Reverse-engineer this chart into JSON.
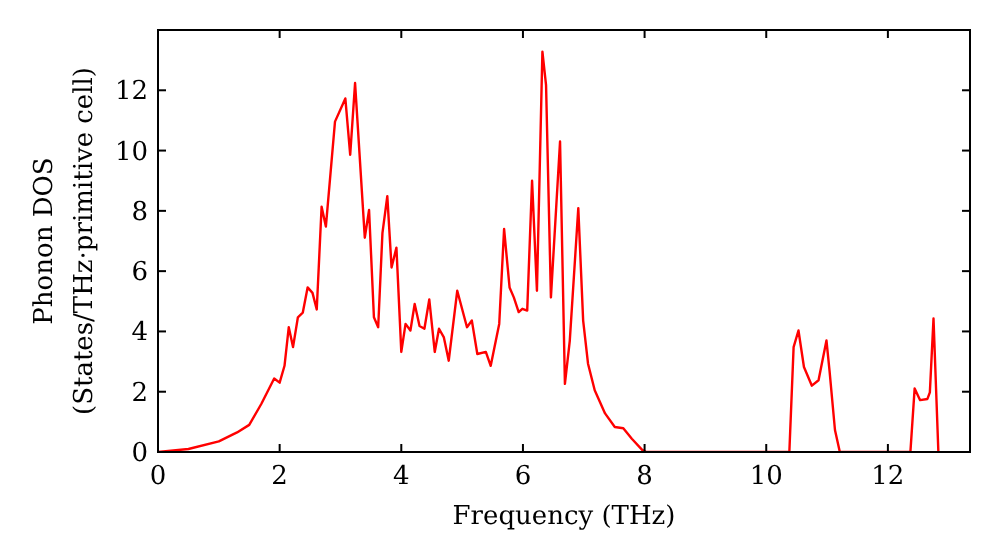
{
  "chart_data": {
    "type": "line",
    "xlabel": "Frequency (THz)",
    "ylabel": "Phonon DOS\n(States/THz·primitive cell)",
    "xlim": [
      0,
      13.35
    ],
    "ylim": [
      0,
      14
    ],
    "xticks": [
      0,
      2,
      4,
      6,
      8,
      10,
      12
    ],
    "yticks": [
      0,
      2,
      4,
      6,
      8,
      10,
      12
    ],
    "grid": false,
    "marker": "none",
    "line_style": "solid",
    "series": [
      {
        "color": "#ff0000",
        "x": [
          0,
          0.5,
          1.0,
          1.3,
          1.5,
          1.7,
          1.91,
          2.0,
          2.08,
          2.15,
          2.22,
          2.3,
          2.38,
          2.46,
          2.54,
          2.61,
          2.69,
          2.76,
          2.91,
          3.08,
          3.16,
          3.24,
          3.4,
          3.47,
          3.55,
          3.62,
          3.69,
          3.77,
          3.84,
          3.92,
          4.0,
          4.07,
          4.15,
          4.22,
          4.3,
          4.38,
          4.46,
          4.55,
          4.62,
          4.7,
          4.78,
          4.92,
          5.08,
          5.16,
          5.25,
          5.39,
          5.47,
          5.61,
          5.69,
          5.78,
          5.85,
          5.93,
          5.99,
          6.07,
          6.15,
          6.23,
          6.32,
          6.38,
          6.46,
          6.61,
          6.69,
          6.77,
          6.91,
          6.99,
          7.07,
          7.18,
          7.35,
          7.51,
          7.65,
          7.79,
          7.96,
          8.03,
          10.38,
          10.45,
          10.53,
          10.62,
          10.75,
          10.86,
          10.99,
          11.04,
          11.13,
          11.21,
          12.37,
          12.44,
          12.53,
          12.65,
          12.69,
          12.75,
          12.83
        ],
        "values": [
          0,
          0.1,
          0.35,
          0.65,
          0.9,
          1.6,
          2.44,
          2.3,
          2.86,
          4.14,
          3.48,
          4.47,
          4.62,
          5.46,
          5.28,
          4.73,
          8.14,
          7.48,
          10.96,
          11.73,
          9.86,
          12.24,
          7.11,
          8.03,
          4.47,
          4.14,
          7.26,
          8.49,
          6.12,
          6.78,
          3.32,
          4.25,
          4.03,
          4.91,
          4.18,
          4.09,
          5.06,
          3.32,
          4.09,
          3.8,
          3.03,
          5.35,
          4.14,
          4.36,
          3.25,
          3.32,
          2.86,
          4.25,
          7.4,
          5.46,
          5.13,
          4.64,
          4.75,
          4.69,
          9.0,
          5.35,
          13.28,
          12.17,
          5.13,
          10.3,
          2.26,
          3.69,
          8.09,
          4.36,
          2.93,
          2.05,
          1.28,
          0.83,
          0.79,
          0.44,
          0.07,
          0,
          0,
          3.48,
          4.03,
          2.82,
          2.2,
          2.38,
          3.7,
          2.71,
          0.73,
          0,
          0,
          2.11,
          1.72,
          1.76,
          1.98,
          4.43,
          0
        ]
      }
    ]
  }
}
